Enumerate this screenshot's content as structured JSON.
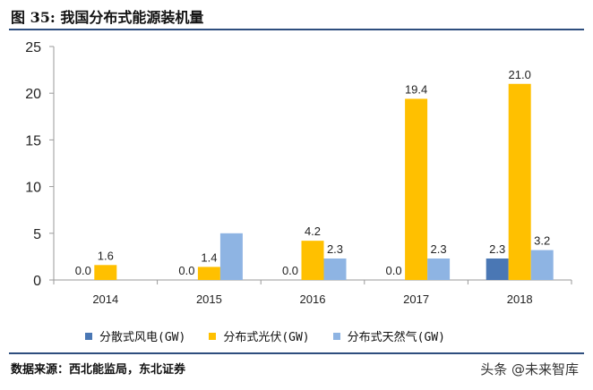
{
  "figure": {
    "title": "图 35: 我国分布式能源装机量",
    "source": "数据来源：西北能监局，东北证券",
    "watermark": "头条 @未来智库"
  },
  "chart_data": {
    "type": "bar",
    "categories": [
      "2014",
      "2015",
      "2016",
      "2017",
      "2018"
    ],
    "series": [
      {
        "name": "分散式风电(GW)",
        "values": [
          0.0,
          0.0,
          0.0,
          0.0,
          2.3
        ],
        "labels": [
          "0.0",
          "0.0",
          "0.0",
          "0.0",
          "2.3"
        ],
        "color": "#4a77b4"
      },
      {
        "name": "分布式光伏(GW)",
        "values": [
          1.6,
          1.4,
          4.2,
          19.4,
          21.0
        ],
        "labels": [
          "1.6",
          "1.4",
          "4.2",
          "19.4",
          "21.0"
        ],
        "color": "#ffc000"
      },
      {
        "name": "分布式天然气(GW)",
        "values": [
          null,
          5.0,
          2.3,
          2.3,
          3.2
        ],
        "labels": [
          null,
          null,
          "2.3",
          "2.3",
          "3.2"
        ],
        "color": "#8eb4e3"
      }
    ],
    "yticks": [
      "0",
      "5",
      "10",
      "15",
      "20",
      "25"
    ],
    "ylim": [
      0,
      25
    ],
    "grid": false,
    "legend_position": "bottom"
  }
}
